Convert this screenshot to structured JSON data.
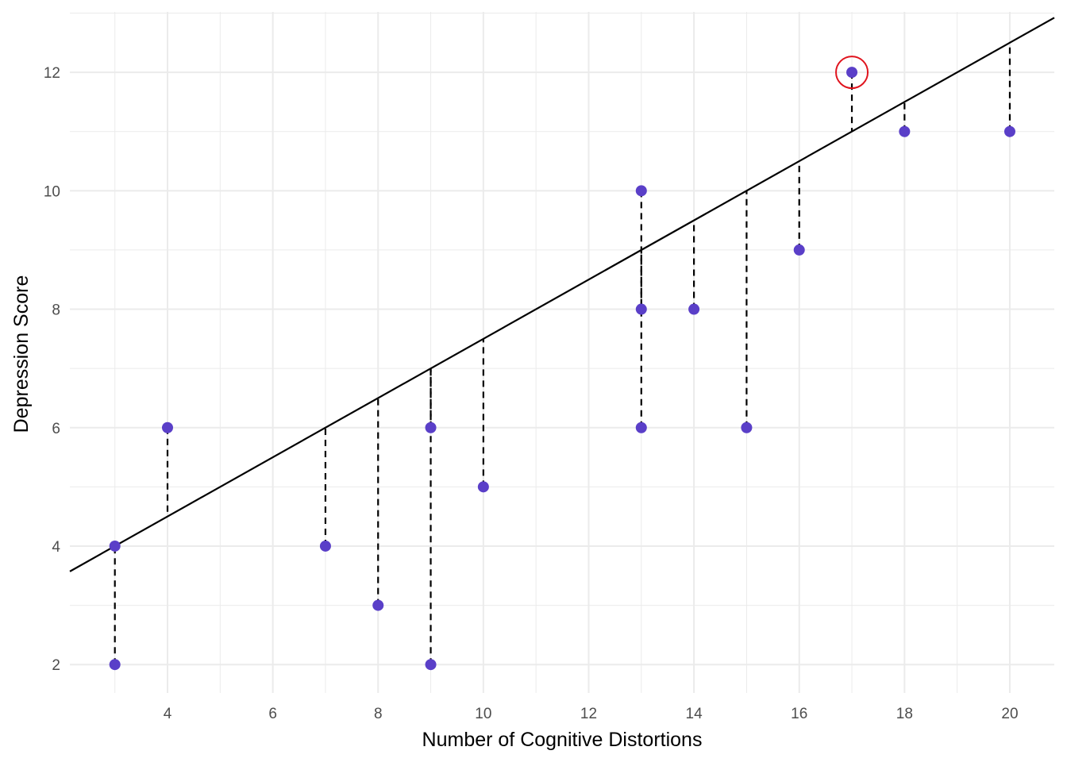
{
  "chart_data": {
    "type": "scatter",
    "title": "",
    "xlabel": "Number of Cognitive Distortions",
    "ylabel": "Depression Score",
    "xlim": [
      2.145,
      20.845
    ],
    "ylim": [
      1.52,
      13.02
    ],
    "xticks": [
      4,
      6,
      8,
      10,
      12,
      14,
      16,
      18,
      20
    ],
    "yticks": [
      2,
      4,
      6,
      8,
      10,
      12
    ],
    "grid": true,
    "points": [
      {
        "x": 3,
        "y": 2
      },
      {
        "x": 3,
        "y": 4
      },
      {
        "x": 4,
        "y": 6
      },
      {
        "x": 7,
        "y": 4
      },
      {
        "x": 8,
        "y": 3
      },
      {
        "x": 9,
        "y": 2
      },
      {
        "x": 9,
        "y": 6
      },
      {
        "x": 10,
        "y": 5
      },
      {
        "x": 13,
        "y": 6
      },
      {
        "x": 13,
        "y": 8
      },
      {
        "x": 13,
        "y": 10
      },
      {
        "x": 14,
        "y": 8
      },
      {
        "x": 15,
        "y": 6
      },
      {
        "x": 16,
        "y": 9
      },
      {
        "x": 17,
        "y": 12,
        "highlighted": true
      },
      {
        "x": 18,
        "y": 11
      },
      {
        "x": 20,
        "y": 11
      }
    ],
    "regression_line": {
      "slope": 0.5,
      "intercept": 2.5
    },
    "residuals": "dashed",
    "colors": {
      "point": "#5a3fc8",
      "line": "#000000",
      "residual": "#000000",
      "highlight": "#e0141e",
      "grid": "#ebebeb"
    }
  }
}
